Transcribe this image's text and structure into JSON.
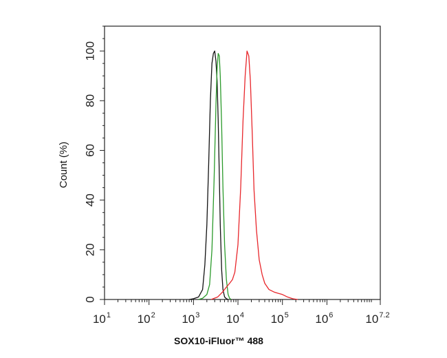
{
  "chart_data": {
    "type": "line",
    "title": "",
    "xlabel": "SOX10-iFluor™ 488",
    "ylabel": "Count (%)",
    "x_scale": "log10",
    "xlim": [
      10,
      15848932
    ],
    "ylim": [
      0,
      110
    ],
    "grid": false,
    "legend": "none",
    "x_ticks": [
      {
        "base": "10",
        "exp": "1",
        "value": 10
      },
      {
        "base": "10",
        "exp": "2",
        "value": 100
      },
      {
        "base": "10",
        "exp": "3",
        "value": 1000
      },
      {
        "base": "10",
        "exp": "4",
        "value": 10000
      },
      {
        "base": "10",
        "exp": "5",
        "value": 100000
      },
      {
        "base": "10",
        "exp": "6",
        "value": 1000000
      },
      {
        "base": "10",
        "exp": "7.2",
        "value": 15848932
      }
    ],
    "y_ticks": [
      "0",
      "20",
      "40",
      "60",
      "80",
      "100"
    ],
    "series": [
      {
        "color": "#111111",
        "x": [
          800,
          1000,
          1300,
          1600,
          1800,
          2000,
          2200,
          2400,
          2600,
          2800,
          3000,
          3200,
          3400,
          3600,
          3800,
          4000,
          4300,
          4600,
          5000,
          5500,
          6000
        ],
        "y": [
          0,
          0.3,
          1,
          4,
          14,
          30,
          55,
          80,
          95,
          99,
          100,
          96,
          88,
          72,
          50,
          30,
          12,
          4,
          1,
          0.3,
          0
        ]
      },
      {
        "color": "#2a9a2a",
        "x": [
          1300,
          1600,
          2000,
          2300,
          2600,
          2900,
          3200,
          3400,
          3600,
          3800,
          4000,
          4300,
          4600,
          5000,
          5500,
          6000,
          6500,
          7000
        ],
        "y": [
          0,
          0.5,
          2,
          6,
          20,
          48,
          78,
          93,
          99,
          98,
          90,
          70,
          45,
          22,
          8,
          2,
          0.5,
          0
        ]
      },
      {
        "color": "#e8252a",
        "x": [
          2500,
          3500,
          4500,
          5500,
          6500,
          7500,
          8500,
          10000,
          11500,
          13000,
          14500,
          16000,
          17500,
          19000,
          21000,
          23000,
          26000,
          30000,
          35000,
          40000,
          50000,
          65000,
          80000,
          100000,
          130000,
          170000,
          220000
        ],
        "y": [
          0,
          1,
          3,
          5,
          6.5,
          8,
          11,
          22,
          45,
          72,
          90,
          100,
          98,
          88,
          66,
          44,
          28,
          16,
          10,
          6.5,
          4,
          3,
          2.5,
          2,
          1,
          0.3,
          0
        ]
      }
    ]
  }
}
